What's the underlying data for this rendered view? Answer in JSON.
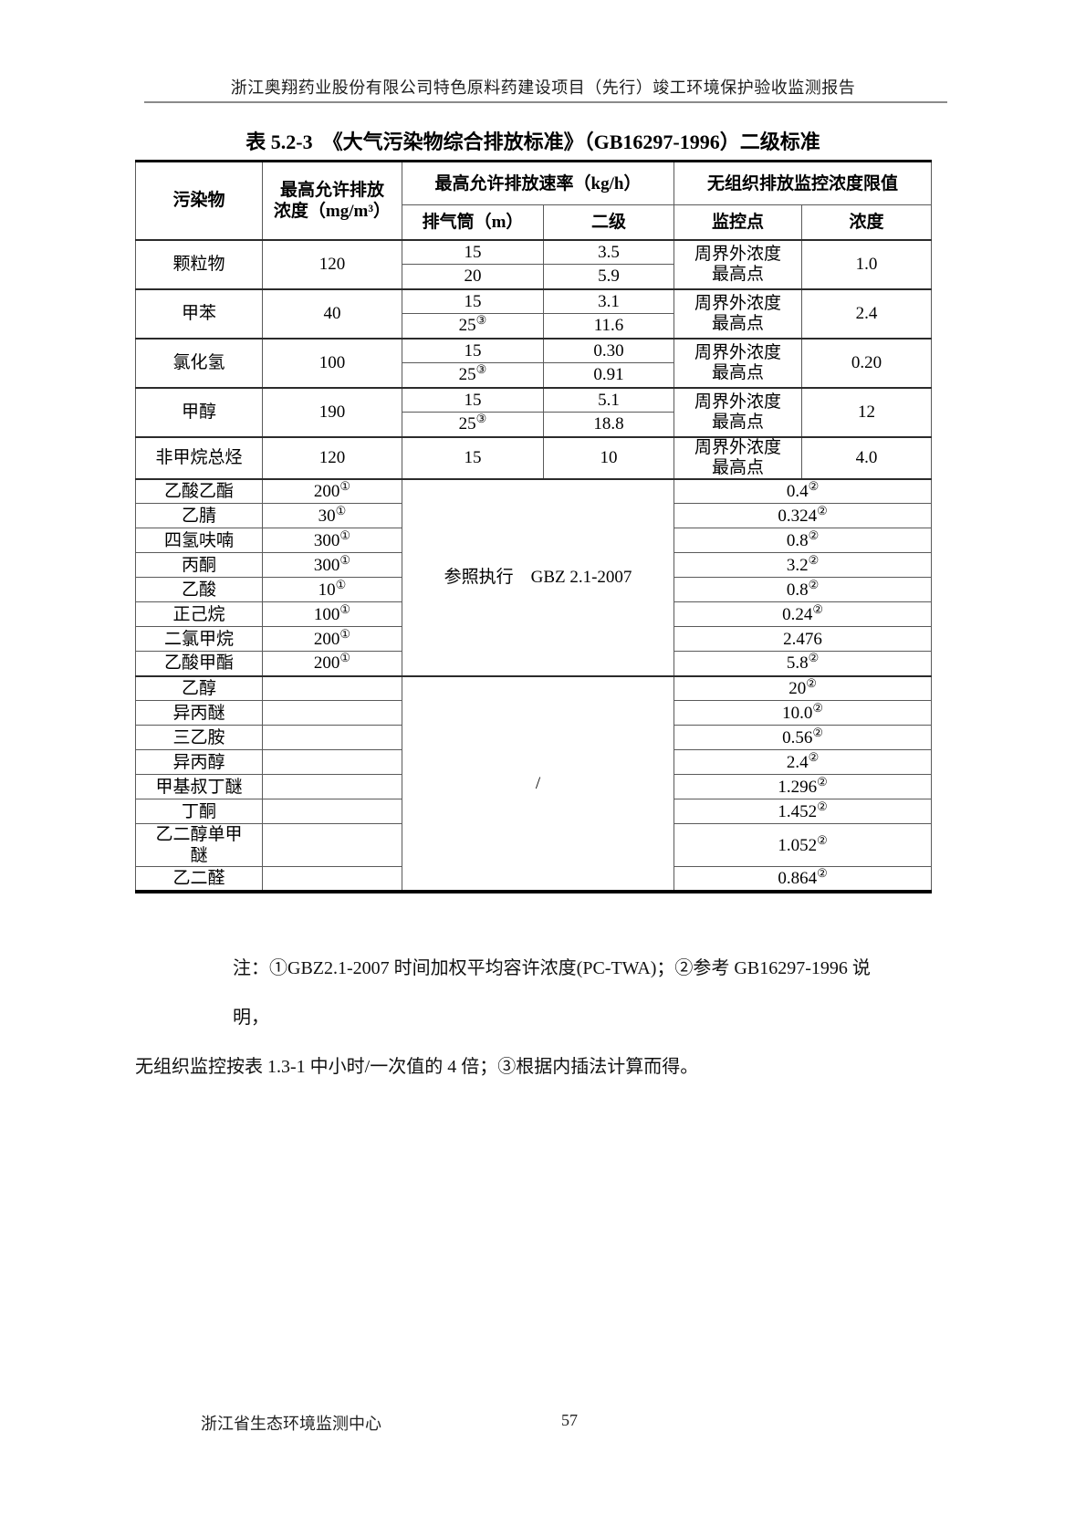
{
  "page": {
    "header_title": "浙江奥翔药业股份有限公司特色原料药建设项目（先行）竣工环境保护验收监测报告",
    "footer_org": "浙江省生态环境监测中心",
    "page_number": "57"
  },
  "table": {
    "title": "表 5.2-3　《大气污染物综合排放标准》（GB16297-1996）二级标准",
    "header": {
      "pollutant": "污染物",
      "max_conc_lines": [
        "最高允许排放",
        "浓度（mg/m³）"
      ],
      "max_rate": "最高允许排放速率（kg/h）",
      "fugitive_limit": "无组织排放监控浓度限值",
      "sub_stack": "排气筒（m）",
      "sub_level": "二级",
      "sub_point": "监控点",
      "sub_conc": "浓度"
    },
    "stack_rows": [
      {
        "name": "颗粒物",
        "conc": "120",
        "point": [
          "周界外浓度",
          "最高点"
        ],
        "limit": "1.0",
        "subs": [
          {
            "stack": "15",
            "rate": "3.5"
          },
          {
            "stack": "20",
            "rate": "5.9"
          }
        ]
      },
      {
        "name": "甲苯",
        "conc": "40",
        "point": [
          "周界外浓度",
          "最高点"
        ],
        "limit": "2.4",
        "subs": [
          {
            "stack": "15",
            "rate": "3.1"
          },
          {
            "stack": "25",
            "sup": "③",
            "rate": "11.6"
          }
        ]
      },
      {
        "name": "氯化氢",
        "conc": "100",
        "point": [
          "周界外浓度",
          "最高点"
        ],
        "limit": "0.20",
        "subs": [
          {
            "stack": "15",
            "rate": "0.30"
          },
          {
            "stack": "25",
            "sup": "③",
            "rate": "0.91"
          }
        ]
      },
      {
        "name": "甲醇",
        "conc": "190",
        "point": [
          "周界外浓度",
          "最高点"
        ],
        "limit": "12",
        "subs": [
          {
            "stack": "15",
            "rate": "5.1"
          },
          {
            "stack": "25",
            "sup": "③",
            "rate": "18.8"
          }
        ]
      },
      {
        "name": "非甲烷总烃",
        "conc": "120",
        "point": [
          "周界外浓度",
          "最高点"
        ],
        "limit": "4.0",
        "subs": [
          {
            "stack": "15",
            "rate": "10"
          }
        ]
      }
    ],
    "solvent_groups": [
      {
        "middle": "参照执行　GBZ 2.1-2007",
        "rows": [
          {
            "name": "乙酸乙酯",
            "conc": "200",
            "conc_sup": "①",
            "limit": "0.4",
            "limit_sup": "②"
          },
          {
            "name": "乙腈",
            "conc": "30",
            "conc_sup": "①",
            "limit": "0.324",
            "limit_sup": "②"
          },
          {
            "name": "四氢呋喃",
            "conc": "300",
            "conc_sup": "①",
            "limit": "0.8",
            "limit_sup": "②"
          },
          {
            "name": "丙酮",
            "conc": "300",
            "conc_sup": "①",
            "limit": "3.2",
            "limit_sup": "②"
          },
          {
            "name": "乙酸",
            "conc": "10",
            "conc_sup": "①",
            "limit": "0.8",
            "limit_sup": "②"
          },
          {
            "name": "正己烷",
            "conc": "100",
            "conc_sup": "①",
            "limit": "0.24",
            "limit_sup": "②"
          },
          {
            "name": "二氯甲烷",
            "conc": "200",
            "conc_sup": "①",
            "limit": "2.476",
            "limit_sup": ""
          },
          {
            "name": "乙酸甲酯",
            "conc": "200",
            "conc_sup": "①",
            "limit": "5.8",
            "limit_sup": "②"
          }
        ]
      },
      {
        "middle": "/",
        "rows": [
          {
            "name": "乙醇",
            "conc": "",
            "limit": "20",
            "limit_sup": "②"
          },
          {
            "name": "异丙醚",
            "conc": "",
            "limit": "10.0",
            "limit_sup": "②"
          },
          {
            "name": "三乙胺",
            "conc": "",
            "limit": "0.56",
            "limit_sup": "②"
          },
          {
            "name": "异丙醇",
            "conc": "",
            "limit": "2.4",
            "limit_sup": "②"
          },
          {
            "name": "甲基叔丁醚",
            "conc": "",
            "limit": "1.296",
            "limit_sup": "②"
          },
          {
            "name": "丁酮",
            "conc": "",
            "limit": "1.452",
            "limit_sup": "②"
          },
          {
            "name": [
              "乙二醇单甲",
              "醚"
            ],
            "conc": "",
            "limit": "1.052",
            "limit_sup": "②"
          },
          {
            "name": "乙二醛",
            "conc": "",
            "limit": "0.864",
            "limit_sup": "②"
          }
        ]
      }
    ]
  },
  "notes": {
    "lines": [
      "注：①GBZ2.1-2007 时间加权平均容许浓度(PC-TWA)；②参考 GB16297-1996 说明，",
      "无组织监控按表 1.3-1 中小时/一次值的 4 倍；③根据内插法计算而得。"
    ]
  }
}
